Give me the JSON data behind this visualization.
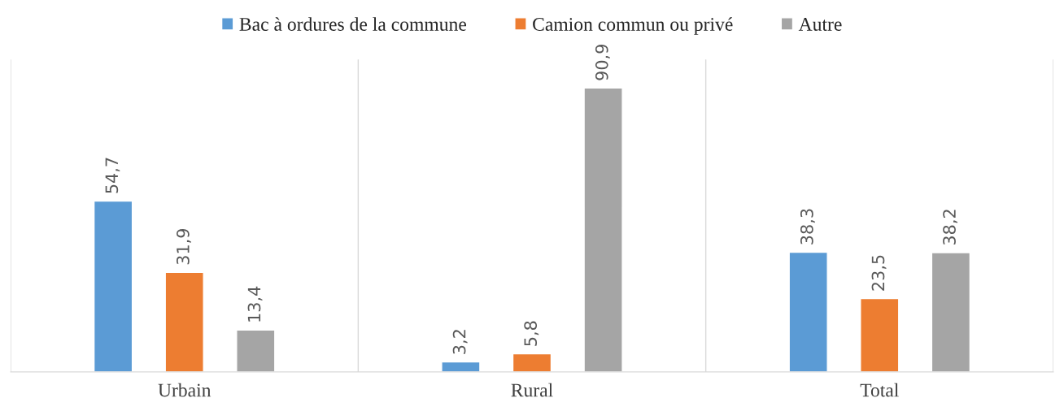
{
  "chart_data": {
    "type": "bar",
    "categories": [
      "Urbain",
      "Rural",
      "Total"
    ],
    "series": [
      {
        "name": "Bac à ordures de la commune",
        "color": "#5b9bd5",
        "values": [
          54.7,
          3.2,
          38.3
        ],
        "value_labels": [
          "54,7",
          "3,2",
          "38,3"
        ]
      },
      {
        "name": "Camion commun ou privé",
        "color": "#ed7d31",
        "values": [
          31.9,
          5.8,
          23.5
        ],
        "value_labels": [
          "31,9",
          "5,8",
          "23,5"
        ]
      },
      {
        "name": "Autre",
        "color": "#a5a5a5",
        "values": [
          13.4,
          90.9,
          38.2
        ],
        "value_labels": [
          "13,4",
          "90,9",
          "38,2"
        ]
      }
    ],
    "grid": "x",
    "legend": "top"
  }
}
